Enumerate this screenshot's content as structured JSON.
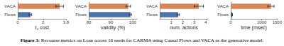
{
  "chart_data": [
    {
      "type": "bar",
      "orientation": "horizontal",
      "xlabel": "ℓ₂ cost",
      "categories": [
        "Flows",
        "VACA"
      ],
      "values": [
        1.0,
        3.3
      ],
      "errors": [
        0.1,
        0.3
      ],
      "colors": [
        "#4c72b0",
        "#dd8452"
      ],
      "xlim": [
        0,
        3.8
      ],
      "xticks": [
        0,
        2
      ],
      "grid": false
    },
    {
      "type": "bar",
      "orientation": "horizontal",
      "xlabel": "validity (%)",
      "categories": [
        "Flows",
        "VACA"
      ],
      "values": [
        99,
        98
      ],
      "errors": [
        0.5,
        1
      ],
      "colors": [
        "#4c72b0",
        "#dd8452"
      ],
      "xlim": [
        80,
        102
      ],
      "xticks": [
        80,
        90,
        100
      ],
      "grid": false
    },
    {
      "type": "bar",
      "orientation": "horizontal",
      "xlabel": "num. actions",
      "categories": [
        "Flows",
        "VACA"
      ],
      "values": [
        1.6,
        3.4
      ],
      "errors": [
        0.1,
        0.4
      ],
      "colors": [
        "#4c72b0",
        "#dd8452"
      ],
      "xlim": [
        0,
        4.2
      ],
      "xticks": [
        1,
        2,
        3,
        4
      ],
      "grid": false
    },
    {
      "type": "bar",
      "orientation": "horizontal",
      "xlabel": "time (msec)",
      "categories": [
        "Flows",
        "VACA"
      ],
      "values": [
        50,
        1300
      ],
      "errors": [
        5,
        100
      ],
      "colors": [
        "#4c72b0",
        "#dd8452"
      ],
      "xlim": [
        0,
        1500
      ],
      "xticks": [
        0,
        1000
      ],
      "grid": false
    }
  ],
  "caption": {
    "label": "Figure 3:",
    "text": "Recourse metrics on Loan across 10 seeds for CARMA using Causal Flows and VACA as the generative model."
  }
}
